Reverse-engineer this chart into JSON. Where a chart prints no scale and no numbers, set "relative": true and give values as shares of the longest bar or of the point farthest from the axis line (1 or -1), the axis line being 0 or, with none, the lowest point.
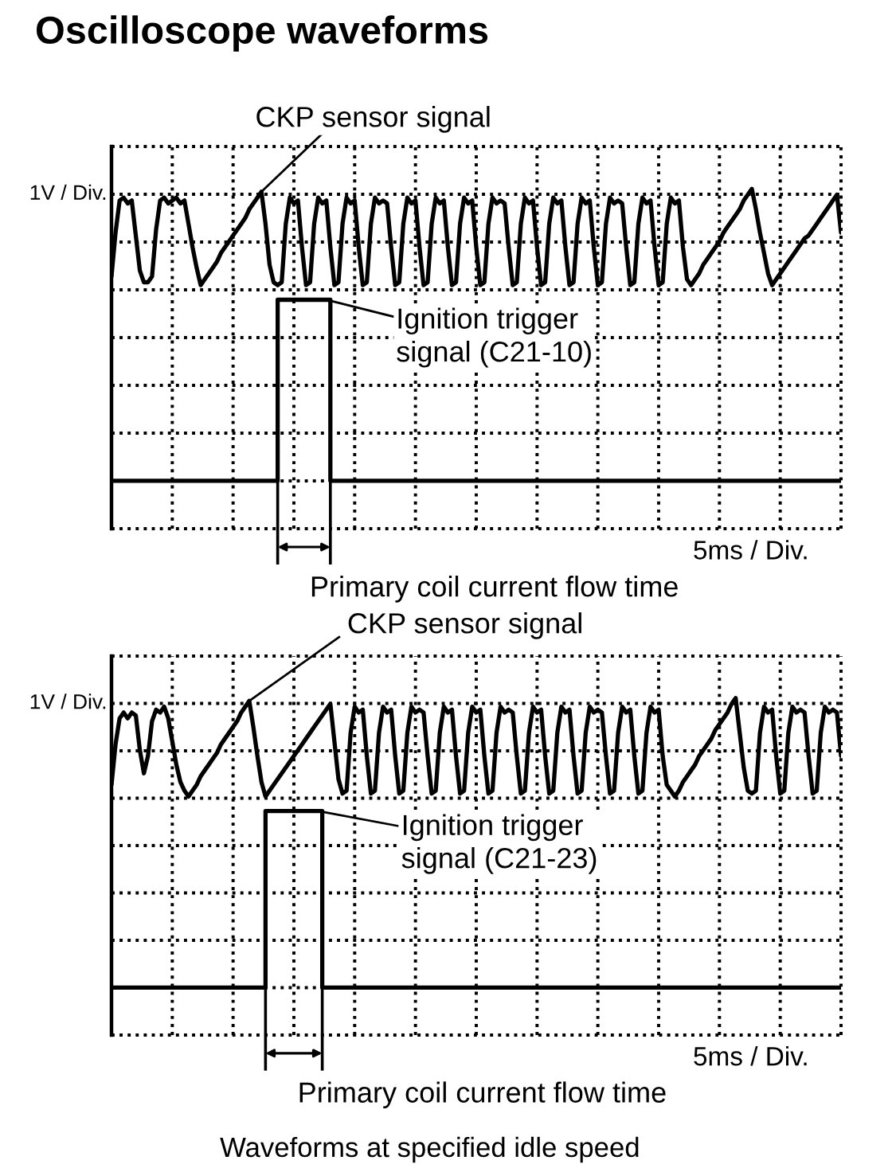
{
  "chart_data": [
    {
      "type": "line",
      "title": "Oscilloscope waveforms",
      "relative": true,
      "grid": true,
      "categories": [
        null,
        null,
        null,
        null,
        null,
        null,
        null,
        null,
        null,
        null,
        null,
        null,
        null,
        null,
        null,
        null,
        null,
        null,
        null,
        null,
        null,
        null,
        null,
        null,
        null,
        null,
        null,
        null,
        null,
        null,
        null,
        null,
        null,
        null,
        null,
        null,
        null,
        null,
        null,
        null,
        null,
        null,
        null,
        null,
        null,
        null,
        null,
        null,
        null,
        null,
        null,
        null,
        null,
        null,
        null,
        null,
        null,
        null,
        null,
        null,
        null,
        null,
        null,
        null,
        null,
        null,
        null,
        null,
        null,
        null,
        null,
        null,
        null,
        null,
        null,
        null,
        null,
        null,
        null,
        null,
        null,
        null,
        null,
        null,
        null,
        null,
        null,
        null,
        null,
        null,
        null,
        null,
        null,
        null,
        null,
        null,
        null,
        null,
        null,
        null,
        null,
        null,
        null,
        null,
        null,
        null,
        null,
        null,
        null,
        null,
        null,
        null,
        null,
        null,
        null,
        null,
        null,
        null,
        null,
        null,
        null,
        null,
        null,
        null,
        null,
        null,
        null,
        null,
        null,
        null,
        null,
        null,
        null,
        null,
        null,
        null,
        null,
        null,
        null,
        null,
        null,
        null,
        null,
        null,
        null,
        null,
        null,
        null,
        null,
        null,
        null,
        null,
        null,
        null,
        null,
        null,
        null,
        null,
        null,
        null,
        null,
        null,
        null,
        null,
        null,
        null,
        null,
        null,
        null,
        null,
        null,
        null,
        null,
        null,
        null,
        null,
        null,
        null,
        null,
        null,
        null
      ],
      "series": [
        {
          "name": "CKP sensor signal",
          "color": "#000000",
          "values": [
            0.7,
            0.85,
            0.96,
            0.97,
            0.95,
            0.96,
            0.84,
            0.72,
            0.68,
            0.68,
            0.7,
            0.86,
            0.96,
            0.97,
            0.95,
            0.96,
            0.97,
            0.95,
            0.96,
            0.88,
            0.8,
            0.73,
            0.67,
            0.69,
            0.71,
            0.73,
            0.75,
            0.78,
            0.8,
            0.82,
            0.84,
            0.86,
            0.88,
            0.9,
            0.93,
            0.95,
            0.97,
            0.99,
            0.88,
            0.74,
            0.68,
            0.67,
            0.68,
            0.88,
            0.97,
            0.95,
            0.96,
            0.8,
            0.67,
            0.68,
            0.88,
            0.97,
            0.95,
            0.96,
            0.8,
            0.67,
            0.68,
            0.88,
            0.97,
            0.95,
            0.96,
            0.8,
            0.67,
            0.68,
            0.88,
            0.97,
            0.95,
            0.96,
            0.95,
            0.8,
            0.67,
            0.68,
            0.88,
            0.97,
            0.95,
            0.96,
            0.8,
            0.67,
            0.68,
            0.88,
            0.97,
            0.95,
            0.96,
            0.8,
            0.67,
            0.68,
            0.88,
            0.97,
            0.95,
            0.96,
            0.8,
            0.67,
            0.68,
            0.88,
            0.97,
            0.95,
            0.96,
            0.95,
            0.8,
            0.67,
            0.68,
            0.88,
            0.97,
            0.95,
            0.96,
            0.8,
            0.67,
            0.68,
            0.88,
            0.97,
            0.95,
            0.96,
            0.8,
            0.67,
            0.68,
            0.88,
            0.97,
            0.95,
            0.96,
            0.8,
            0.67,
            0.68,
            0.88,
            0.97,
            0.95,
            0.96,
            0.95,
            0.8,
            0.67,
            0.68,
            0.88,
            0.97,
            0.95,
            0.96,
            0.8,
            0.67,
            0.68,
            0.88,
            0.97,
            0.95,
            0.96,
            0.8,
            0.69,
            0.67,
            0.69,
            0.71,
            0.74,
            0.76,
            0.78,
            0.8,
            0.82,
            0.85,
            0.87,
            0.89,
            0.91,
            0.93,
            0.96,
            0.98,
            1.0,
            0.93,
            0.85,
            0.78,
            0.71,
            0.67,
            0.69,
            0.71,
            0.73,
            0.75,
            0.77,
            0.79,
            0.81,
            0.83,
            0.84,
            0.86,
            0.88,
            0.9,
            0.92,
            0.94,
            0.96,
            0.98,
            0.85
          ]
        },
        {
          "name": "Ignition trigger\nsignal (C21-10)",
          "type": "step",
          "color": "#000000",
          "values": [
            0,
            0,
            0,
            0,
            0,
            0,
            0,
            0,
            0,
            0,
            0,
            0,
            0,
            0,
            0,
            0,
            0,
            0,
            0,
            0,
            0,
            0,
            0,
            0,
            0,
            0,
            0,
            0,
            0,
            0,
            0,
            0,
            0,
            0,
            0,
            0,
            0,
            0,
            0,
            0,
            0,
            0.62,
            0.62,
            0.62,
            0.62,
            0.62,
            0.62,
            0.62,
            0.62,
            0.62,
            0.62,
            0.62,
            0.62,
            0.62,
            0,
            0,
            0,
            0,
            0,
            0,
            0,
            0,
            0,
            0,
            0,
            0,
            0,
            0,
            0,
            0,
            0,
            0,
            0,
            0,
            0,
            0,
            0,
            0,
            0,
            0,
            0,
            0,
            0,
            0,
            0,
            0,
            0,
            0,
            0,
            0,
            0,
            0,
            0,
            0,
            0,
            0,
            0,
            0,
            0,
            0,
            0,
            0,
            0,
            0,
            0,
            0,
            0,
            0,
            0,
            0,
            0,
            0,
            0,
            0,
            0,
            0,
            0,
            0,
            0,
            0,
            0,
            0,
            0,
            0,
            0,
            0,
            0,
            0,
            0,
            0,
            0,
            0,
            0,
            0,
            0,
            0,
            0,
            0,
            0,
            0,
            0,
            0,
            0,
            0,
            0,
            0,
            0,
            0,
            0,
            0,
            0,
            0,
            0,
            0,
            0,
            0,
            0,
            0,
            0,
            0,
            0,
            0,
            0,
            0,
            0,
            0,
            0,
            0,
            0,
            0,
            0,
            0,
            0,
            0,
            0,
            0,
            0,
            0,
            0,
            0,
            0
          ]
        }
      ],
      "annotations": [
        "1V / Div.",
        "5ms / Div.",
        "Primary coil current flow time"
      ]
    },
    {
      "type": "line",
      "relative": true,
      "grid": true,
      "categories": [
        null,
        null,
        null,
        null,
        null,
        null,
        null,
        null,
        null,
        null,
        null,
        null,
        null,
        null,
        null,
        null,
        null,
        null,
        null,
        null,
        null,
        null,
        null,
        null,
        null,
        null,
        null,
        null,
        null,
        null,
        null,
        null,
        null,
        null,
        null,
        null,
        null,
        null,
        null,
        null,
        null,
        null,
        null,
        null,
        null,
        null,
        null,
        null,
        null,
        null,
        null,
        null,
        null,
        null,
        null,
        null,
        null,
        null,
        null,
        null,
        null,
        null,
        null,
        null,
        null,
        null,
        null,
        null,
        null,
        null,
        null,
        null,
        null,
        null,
        null,
        null,
        null,
        null,
        null,
        null,
        null,
        null,
        null,
        null,
        null,
        null,
        null,
        null,
        null,
        null,
        null,
        null,
        null,
        null,
        null,
        null,
        null,
        null,
        null,
        null,
        null,
        null,
        null,
        null,
        null,
        null,
        null,
        null,
        null,
        null,
        null,
        null,
        null,
        null,
        null,
        null,
        null,
        null,
        null,
        null,
        null,
        null,
        null,
        null,
        null,
        null,
        null,
        null,
        null,
        null,
        null,
        null,
        null,
        null,
        null,
        null,
        null,
        null,
        null,
        null,
        null,
        null,
        null,
        null,
        null,
        null,
        null,
        null,
        null,
        null,
        null,
        null,
        null,
        null,
        null,
        null,
        null,
        null,
        null,
        null,
        null,
        null,
        null,
        null,
        null,
        null,
        null,
        null,
        null,
        null,
        null,
        null,
        null,
        null,
        null,
        null,
        null,
        null,
        null,
        null,
        null
      ],
      "series": [
        {
          "name": "CKP sensor signal",
          "color": "#000000",
          "values": [
            0.7,
            0.84,
            0.93,
            0.95,
            0.93,
            0.95,
            0.94,
            0.82,
            0.74,
            0.8,
            0.92,
            0.96,
            0.95,
            0.97,
            0.93,
            0.85,
            0.77,
            0.71,
            0.68,
            0.66,
            0.68,
            0.7,
            0.73,
            0.75,
            0.77,
            0.79,
            0.81,
            0.84,
            0.86,
            0.88,
            0.9,
            0.92,
            0.95,
            0.97,
            0.99,
            0.9,
            0.8,
            0.71,
            0.66,
            0.68,
            0.7,
            0.72,
            0.74,
            0.76,
            0.78,
            0.8,
            0.82,
            0.84,
            0.86,
            0.88,
            0.9,
            0.92,
            0.94,
            0.96,
            0.98,
            0.85,
            0.72,
            0.67,
            0.68,
            0.88,
            0.97,
            0.95,
            0.96,
            0.8,
            0.67,
            0.68,
            0.88,
            0.97,
            0.95,
            0.96,
            0.8,
            0.67,
            0.68,
            0.88,
            0.97,
            0.95,
            0.96,
            0.95,
            0.8,
            0.67,
            0.68,
            0.88,
            0.97,
            0.95,
            0.96,
            0.8,
            0.67,
            0.68,
            0.88,
            0.97,
            0.95,
            0.96,
            0.8,
            0.67,
            0.68,
            0.88,
            0.97,
            0.95,
            0.96,
            0.95,
            0.8,
            0.67,
            0.68,
            0.88,
            0.97,
            0.95,
            0.96,
            0.8,
            0.67,
            0.68,
            0.88,
            0.97,
            0.95,
            0.96,
            0.8,
            0.67,
            0.68,
            0.88,
            0.97,
            0.95,
            0.96,
            0.95,
            0.8,
            0.67,
            0.68,
            0.88,
            0.97,
            0.95,
            0.96,
            0.8,
            0.67,
            0.68,
            0.88,
            0.97,
            0.95,
            0.96,
            0.8,
            0.7,
            0.68,
            0.66,
            0.68,
            0.71,
            0.73,
            0.75,
            0.77,
            0.8,
            0.82,
            0.84,
            0.86,
            0.89,
            0.91,
            0.93,
            0.95,
            0.98,
            1.0,
            0.88,
            0.76,
            0.68,
            0.67,
            0.68,
            0.88,
            0.97,
            0.95,
            0.96,
            0.8,
            0.67,
            0.68,
            0.88,
            0.97,
            0.95,
            0.96,
            0.95,
            0.8,
            0.67,
            0.68,
            0.88,
            0.97,
            0.95,
            0.96,
            0.95,
            0.8
          ]
        },
        {
          "name": "Ignition trigger\nsignal (C21-23)",
          "type": "step",
          "color": "#000000",
          "values": [
            0,
            0,
            0,
            0,
            0,
            0,
            0,
            0,
            0,
            0,
            0,
            0,
            0,
            0,
            0,
            0,
            0,
            0,
            0,
            0,
            0,
            0,
            0,
            0,
            0,
            0,
            0,
            0,
            0,
            0,
            0,
            0,
            0,
            0,
            0,
            0,
            0,
            0,
            0.61,
            0.61,
            0.61,
            0.61,
            0.61,
            0.61,
            0.61,
            0.61,
            0.61,
            0.61,
            0.61,
            0.61,
            0.61,
            0.61,
            0,
            0,
            0,
            0,
            0,
            0,
            0,
            0,
            0,
            0,
            0,
            0,
            0,
            0,
            0,
            0,
            0,
            0,
            0,
            0,
            0,
            0,
            0,
            0,
            0,
            0,
            0,
            0,
            0,
            0,
            0,
            0,
            0,
            0,
            0,
            0,
            0,
            0,
            0,
            0,
            0,
            0,
            0,
            0,
            0,
            0,
            0,
            0,
            0,
            0,
            0,
            0,
            0,
            0,
            0,
            0,
            0,
            0,
            0,
            0,
            0,
            0,
            0,
            0,
            0,
            0,
            0,
            0,
            0,
            0,
            0,
            0,
            0,
            0,
            0,
            0,
            0,
            0,
            0,
            0,
            0,
            0,
            0,
            0,
            0,
            0,
            0,
            0,
            0,
            0,
            0,
            0,
            0,
            0,
            0,
            0,
            0,
            0,
            0,
            0,
            0,
            0,
            0,
            0,
            0,
            0,
            0,
            0,
            0,
            0,
            0,
            0,
            0,
            0,
            0,
            0,
            0,
            0,
            0,
            0,
            0,
            0,
            0,
            0,
            0,
            0,
            0,
            0,
            0
          ]
        }
      ],
      "annotations": [
        "1V / Div.",
        "5ms / Div.",
        "Primary coil current flow time",
        "Waveforms at specified idle speed"
      ]
    }
  ]
}
